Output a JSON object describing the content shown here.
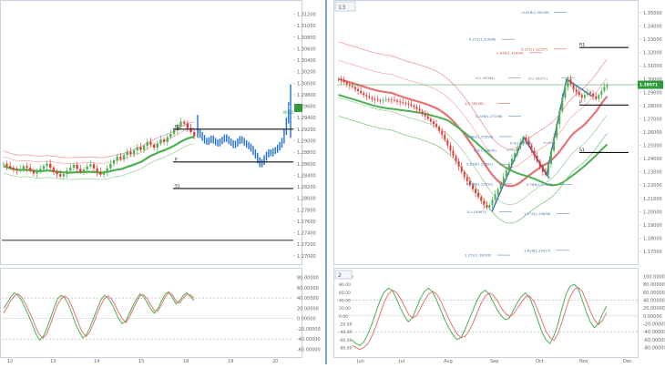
{
  "left_chart": {
    "price_ticks": [
      "1.31200",
      "1.31000",
      "1.30800",
      "1.30600",
      "1.30400",
      "1.30200",
      "1.30000",
      "1.29800",
      "1.29600",
      "1.29400",
      "1.29200",
      "1.29000",
      "1.28800",
      "1.28600",
      "1.28400",
      "1.28200",
      "1.28000",
      "1.27800",
      "1.27600",
      "1.27400",
      "1.27200",
      "1.27000"
    ],
    "price_range": [
      1.2695,
      1.3135
    ],
    "last_price_label": "1.29571",
    "last_price_label_2": "00:25",
    "last_price": 1.2957,
    "x_labels": [
      "12",
      "13",
      "14",
      "15",
      "18",
      "19",
      "20"
    ],
    "level_labels": [
      {
        "label": "R1",
        "value": 1.292
      },
      {
        "label": "P",
        "value": 1.2863
      },
      {
        "label": "S1",
        "value": 1.2817
      }
    ],
    "extra_line_value": 1.2727,
    "osc_ticks": [
      "80.00000",
      "60.00000",
      "40.00000",
      "20.00000",
      "0.00000",
      "-20.00000",
      "-40.00000",
      "-60.00000"
    ],
    "osc_range": [
      -68,
      88
    ]
  },
  "right_chart": {
    "header_label": "13",
    "osc_header_label": "2",
    "price_ticks": [
      "1.35000",
      "1.34000",
      "1.33000",
      "1.32000",
      "1.31000",
      "1.30000",
      "1.29000",
      "1.28000",
      "1.27000",
      "1.26000",
      "1.25000",
      "1.24000",
      "1.23000",
      "1.22000",
      "1.21000",
      "1.20000",
      "1.19000",
      "1.18000",
      "1.17000"
    ],
    "price_range": [
      1.1645,
      1.3555
    ],
    "last_price_label": "1.29571",
    "last_price": 1.2957,
    "x_labels": [
      "Jun",
      "Jul",
      "Aug",
      "Sep",
      "Oct",
      "Nov",
      "Dec"
    ],
    "level_labels": [
      {
        "label": "R1",
        "value": 1.3238
      },
      {
        "label": "P",
        "value": 1.2804
      },
      {
        "label": "S1",
        "value": 1.2446
      }
    ],
    "fib_labels": [
      {
        "text": "-0.618(1.35036)",
        "value": 1.3504,
        "color": "#3b6fb5"
      },
      {
        "text": "0.272(1.32996)",
        "value": 1.33,
        "color": "#3b6fb5"
      },
      {
        "text": "0.272(1.32257)",
        "value": 1.3226,
        "color": "#d64545"
      },
      {
        "text": "1.618(1.31994)",
        "value": 1.3199,
        "color": "#d64545"
      },
      {
        "text": "0(1.30094)",
        "value": 1.3009,
        "color": "#777777"
      },
      {
        "text": "0(1.30071)",
        "value": 1.3007,
        "color": "#777777"
      },
      {
        "text": "1(1.28148)",
        "value": 1.2815,
        "color": "#d64545"
      },
      {
        "text": "0.236(1.27196)",
        "value": 1.272,
        "color": "#3b6fb5"
      },
      {
        "text": "0.382(1.25658)",
        "value": 1.2566,
        "color": "#3b6fb5"
      },
      {
        "text": "0.5(1.24630)",
        "value": 1.2463,
        "color": "#3b6fb5"
      },
      {
        "text": "0.5(1.25178)",
        "value": 1.2518,
        "color": "#3b6fb5"
      },
      {
        "text": "0.618(1.23581)",
        "value": 1.2358,
        "color": "#3b6fb5"
      },
      {
        "text": "0.786(1.22091)",
        "value": 1.2209,
        "color": "#3b6fb5"
      },
      {
        "text": "0.786(1.22037)",
        "value": 1.2204,
        "color": "#3b6fb5"
      },
      {
        "text": "1(1.19987)",
        "value": 1.1999,
        "color": "#3b6fb5"
      },
      {
        "text": "1.272(1.19836)",
        "value": 1.1984,
        "color": "#3b6fb5"
      },
      {
        "text": "1.618(1.17077)",
        "value": 1.1708,
        "color": "#3b6fb5"
      },
      {
        "text": "1.272(1.16720)",
        "value": 1.1672,
        "color": "#3b6fb5"
      }
    ],
    "osc_ticks": [
      "100.0000",
      "80.00000",
      "60.00000",
      "40.00000",
      "20.00000",
      "0.00000",
      "-20.00000",
      "-40.00000",
      "-60.00000",
      "-80.00000"
    ],
    "osc_range": [
      -95,
      108
    ],
    "osc_left_ticks": [
      "100.00",
      "80.00",
      "60.00",
      "40.00",
      "20.00",
      "0.00",
      "-20.00",
      "-40.00",
      "-60.00",
      "-80.00"
    ]
  },
  "colors": {
    "up": "#4caf50",
    "down": "#e53935",
    "ma_green": "#4caf50",
    "ma_red": "#e57373",
    "envelope_red": "#ef9a9a",
    "envelope_green": "#81c784",
    "forecast": "#1e6fd9",
    "price_tag": "#2e9b3a",
    "level": "#111111"
  },
  "chart_data": [
    {
      "type": "candlestick",
      "panel": "left",
      "note": "hourly candles",
      "candles_close": [
        1.286,
        1.2856,
        1.2853,
        1.285,
        1.2848,
        1.2851,
        1.2856,
        1.2853,
        1.2848,
        1.2843,
        1.2846,
        1.2851,
        1.2856,
        1.286,
        1.2853,
        1.2846,
        1.2842,
        1.2838,
        1.2842,
        1.2848,
        1.2853,
        1.2858,
        1.2851,
        1.2846,
        1.285,
        1.2855,
        1.2859,
        1.2852,
        1.2846,
        1.2841,
        1.2845,
        1.2852,
        1.286,
        1.2866,
        1.2872,
        1.2868,
        1.2875,
        1.2881,
        1.2876,
        1.2883,
        1.2889,
        1.2884,
        1.2891,
        1.2898,
        1.2893,
        1.2888,
        1.2895,
        1.2902,
        1.2898,
        1.2906,
        1.2912,
        1.2918,
        1.2925,
        1.2933,
        1.293,
        1.2922,
        1.2915,
        1.2908
      ],
      "forecast_bars": [
        1.2916,
        1.291,
        1.2905,
        1.29,
        1.2898,
        1.2901,
        1.2904,
        1.29,
        1.2897,
        1.2895,
        1.2899,
        1.2902,
        1.2906,
        1.2903,
        1.2899,
        1.2896,
        1.2892,
        1.2895,
        1.2899,
        1.2903,
        1.29,
        1.2896,
        1.2893,
        1.289,
        1.2886,
        1.288,
        1.2874,
        1.2866,
        1.2859,
        1.2863,
        1.287,
        1.2876,
        1.288,
        1.2878,
        1.2882,
        1.2884,
        1.2888,
        1.2893,
        1.29,
        1.2915,
        1.2935,
        1.2962
      ]
    },
    {
      "type": "candlestick",
      "panel": "right",
      "note": "daily candles",
      "candles_close": [
        1.3,
        1.299,
        1.2975,
        1.296,
        1.295,
        1.294,
        1.2925,
        1.291,
        1.2895,
        1.288,
        1.287,
        1.286,
        1.285,
        1.2845,
        1.284,
        1.2838,
        1.2842,
        1.2848,
        1.2845,
        1.2842,
        1.2838,
        1.283,
        1.2825,
        1.282,
        1.2815,
        1.281,
        1.28,
        1.279,
        1.2775,
        1.276,
        1.274,
        1.272,
        1.27,
        1.268,
        1.266,
        1.264,
        1.261,
        1.258,
        1.254,
        1.25,
        1.246,
        1.242,
        1.238,
        1.234,
        1.23,
        1.226,
        1.223,
        1.22,
        1.217,
        1.214,
        1.211,
        1.208,
        1.205,
        1.203,
        1.205,
        1.209,
        1.213,
        1.217,
        1.221,
        1.226,
        1.231,
        1.235,
        1.24,
        1.244,
        1.248,
        1.252,
        1.256,
        1.254,
        1.25,
        1.246,
        1.242,
        1.238,
        1.234,
        1.23,
        1.228,
        1.236,
        1.246,
        1.256,
        1.266,
        1.276,
        1.286,
        1.294,
        1.3,
        1.296,
        1.292,
        1.29,
        1.288,
        1.286,
        1.288,
        1.29,
        1.289,
        1.287,
        1.285,
        1.288,
        1.291,
        1.294,
        1.2957
      ]
    },
    {
      "type": "line",
      "panel": "left-oscillator",
      "series": [
        {
          "name": "",
          "color": "#4caf50",
          "values": [
            20,
            30,
            42,
            50,
            45,
            35,
            20,
            5,
            -12,
            -30,
            -42,
            -35,
            -20,
            0,
            20,
            38,
            45,
            40,
            28,
            10,
            -10,
            -25,
            -38,
            -32,
            -18,
            0,
            18,
            35,
            45,
            40,
            30,
            15,
            0,
            -10,
            -5,
            10,
            25,
            38,
            48,
            42,
            30,
            18,
            10,
            20,
            35,
            48,
            52,
            40,
            28,
            35,
            45,
            50,
            42,
            35
          ]
        },
        {
          "name": "",
          "color": "#e57373",
          "values": [
            10,
            22,
            35,
            44,
            48,
            42,
            30,
            15,
            0,
            -18,
            -32,
            -38,
            -30,
            -12,
            8,
            26,
            38,
            44,
            38,
            24,
            5,
            -12,
            -28,
            -35,
            -26,
            -10,
            8,
            25,
            38,
            44,
            38,
            26,
            12,
            0,
            -8,
            2,
            18,
            32,
            44,
            46,
            38,
            26,
            15,
            15,
            28,
            42,
            50,
            46,
            34,
            30,
            40,
            47,
            46,
            40
          ]
        }
      ]
    },
    {
      "type": "line",
      "panel": "right-oscillator",
      "series": [
        {
          "name": "",
          "color": "#4caf50",
          "values": [
            -60,
            -70,
            -75,
            -65,
            -45,
            -20,
            10,
            40,
            60,
            70,
            65,
            45,
            20,
            0,
            -15,
            -5,
            20,
            45,
            62,
            70,
            60,
            40,
            15,
            -10,
            -30,
            -48,
            -60,
            -55,
            -35,
            -10,
            15,
            40,
            58,
            65,
            55,
            35,
            15,
            0,
            -10,
            -5,
            15,
            35,
            50,
            58,
            45,
            20,
            -10,
            -40,
            -60,
            -70,
            -50,
            -20,
            20,
            55,
            75,
            80,
            70,
            40,
            10,
            -15,
            -30,
            -20,
            5,
            25
          ]
        },
        {
          "name": "",
          "color": "#e57373",
          "values": [
            -75,
            -80,
            -85,
            -80,
            -70,
            -50,
            -25,
            5,
            35,
            55,
            65,
            60,
            45,
            25,
            5,
            -5,
            0,
            20,
            40,
            55,
            62,
            55,
            38,
            15,
            -8,
            -28,
            -45,
            -55,
            -52,
            -38,
            -18,
            8,
            32,
            50,
            58,
            52,
            38,
            20,
            6,
            -2,
            5,
            20,
            35,
            48,
            50,
            38,
            15,
            -12,
            -38,
            -55,
            -62,
            -45,
            -15,
            18,
            48,
            66,
            72,
            62,
            38,
            12,
            -10,
            -22,
            -12,
            8
          ]
        }
      ]
    }
  ]
}
